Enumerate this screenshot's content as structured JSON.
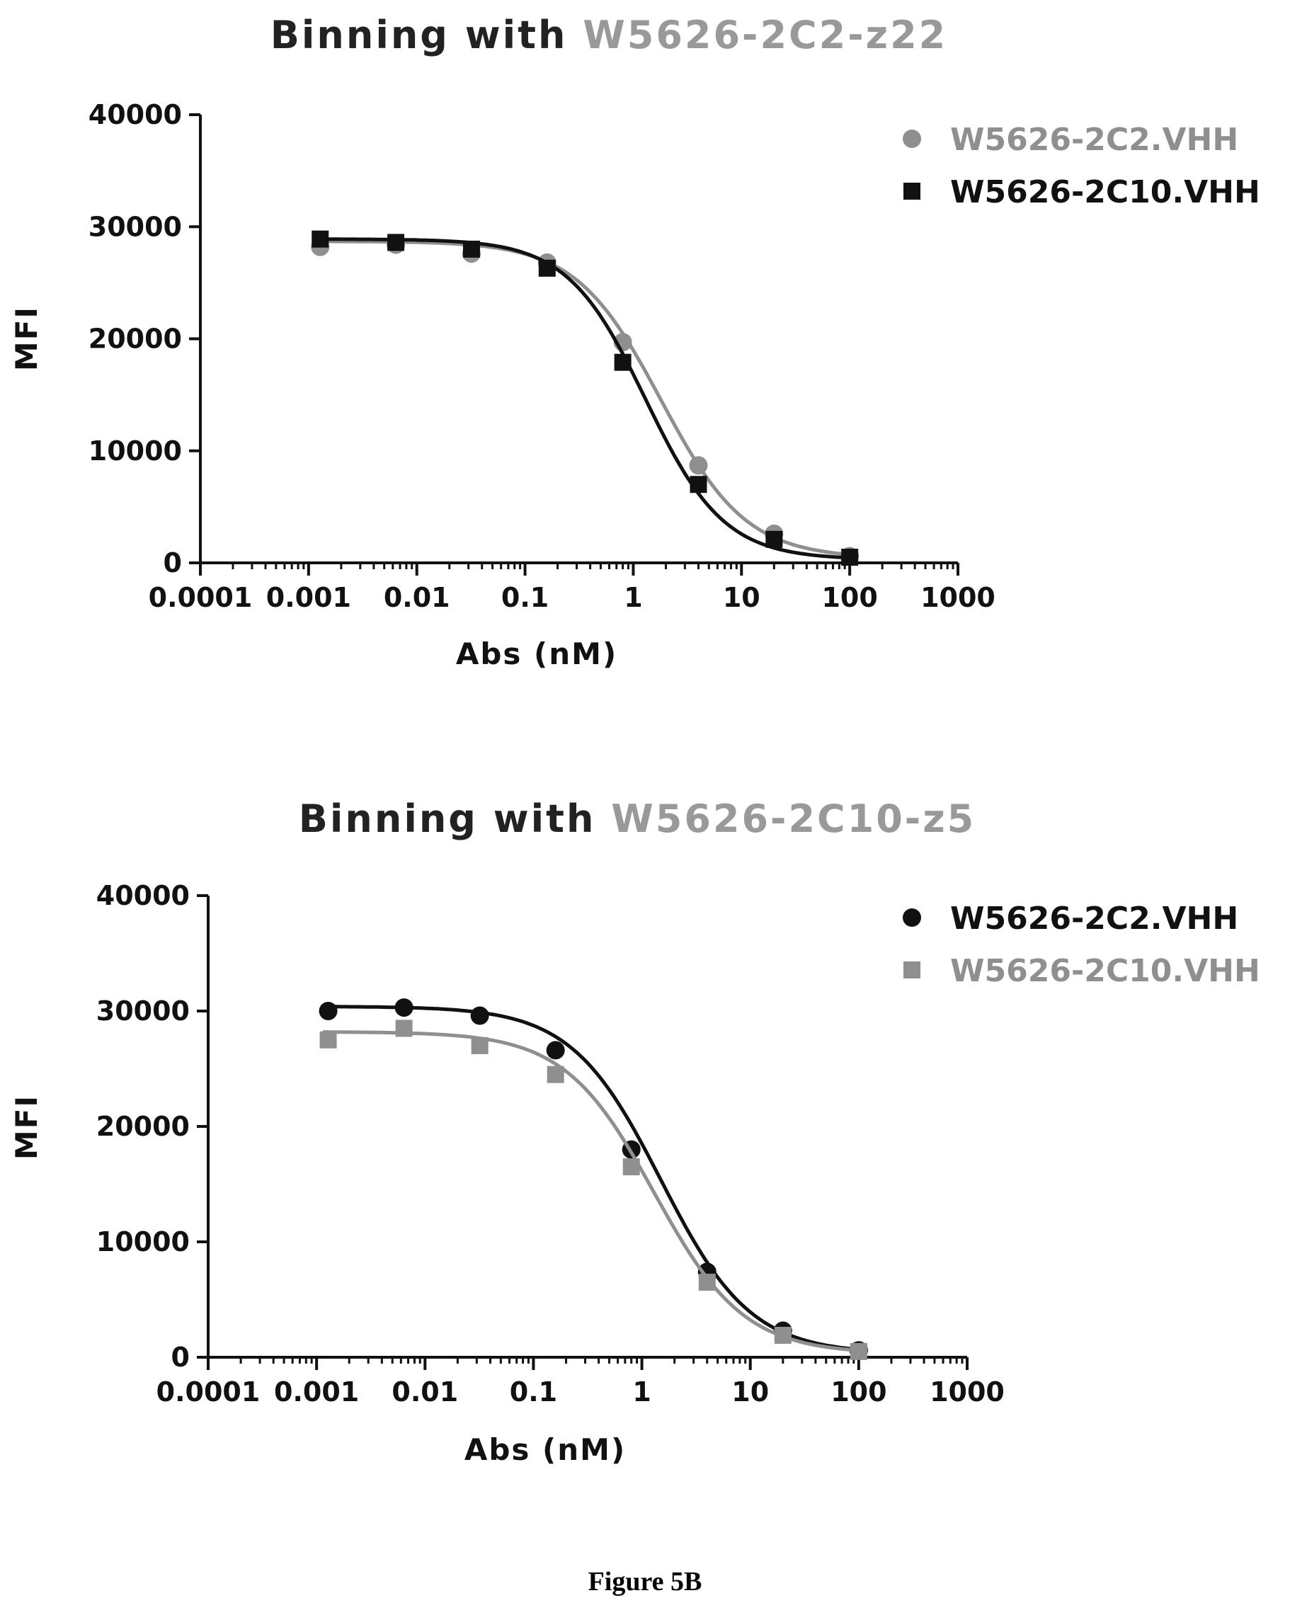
{
  "figure_caption": "Figure 5B",
  "chart_data": [
    {
      "type": "scatter",
      "title_prefix": "Binning with",
      "title_highlight": "W5626-2C2-z22",
      "xlabel": "Abs (nM)",
      "ylabel": "MFI",
      "xscale": "log",
      "xlim": [
        0.0001,
        1000
      ],
      "ylim": [
        0,
        40000
      ],
      "xticks": [
        "0.0001",
        "0.001",
        "0.01",
        "0.1",
        "1",
        "10",
        "100",
        "1000"
      ],
      "yticks": [
        "0",
        "10000",
        "20000",
        "30000",
        "40000"
      ],
      "legend_position": "top-right",
      "series": [
        {
          "name": "W5626-2C2.VHH",
          "marker": "circle",
          "color": "#8f8f8f",
          "top": 28700,
          "bottom": 400,
          "ec50": 1.8,
          "hill": 1.1,
          "x": [
            0.00128,
            0.0064,
            0.032,
            0.16,
            0.8,
            4,
            20,
            100
          ],
          "y": [
            28200,
            28400,
            27600,
            26800,
            19700,
            8700,
            2600,
            600
          ]
        },
        {
          "name": "W5626-2C10.VHH",
          "marker": "square",
          "color": "#111111",
          "top": 28900,
          "bottom": 300,
          "ec50": 1.3,
          "hill": 1.2,
          "x": [
            0.00128,
            0.0064,
            0.032,
            0.16,
            0.8,
            4,
            20,
            100
          ],
          "y": [
            28900,
            28600,
            28000,
            26300,
            17900,
            7000,
            2100,
            500
          ]
        }
      ]
    },
    {
      "type": "scatter",
      "title_prefix": "Binning with",
      "title_highlight": "W5626-2C10-z5",
      "xlabel": "Abs (nM)",
      "ylabel": "MFI",
      "xscale": "log",
      "xlim": [
        0.0001,
        1000
      ],
      "ylim": [
        0,
        40000
      ],
      "xticks": [
        "0.0001",
        "0.001",
        "0.01",
        "0.1",
        "1",
        "10",
        "100",
        "1000"
      ],
      "yticks": [
        "0",
        "10000",
        "20000",
        "30000",
        "40000"
      ],
      "legend_position": "top-right",
      "series": [
        {
          "name": "W5626-2C2.VHH",
          "marker": "circle",
          "color": "#111111",
          "top": 30400,
          "bottom": 300,
          "ec50": 1.5,
          "hill": 1.05,
          "x": [
            0.00128,
            0.0064,
            0.032,
            0.16,
            0.8,
            4,
            20,
            100
          ],
          "y": [
            30000,
            30300,
            29600,
            26600,
            18000,
            7400,
            2300,
            600
          ]
        },
        {
          "name": "W5626-2C10.VHH",
          "marker": "square",
          "color": "#8f8f8f",
          "top": 28200,
          "bottom": 300,
          "ec50": 1.3,
          "hill": 1.05,
          "x": [
            0.00128,
            0.0064,
            0.032,
            0.16,
            0.8,
            4,
            20,
            100
          ],
          "y": [
            27500,
            28500,
            27000,
            24500,
            16500,
            6500,
            1900,
            500
          ]
        }
      ]
    }
  ]
}
